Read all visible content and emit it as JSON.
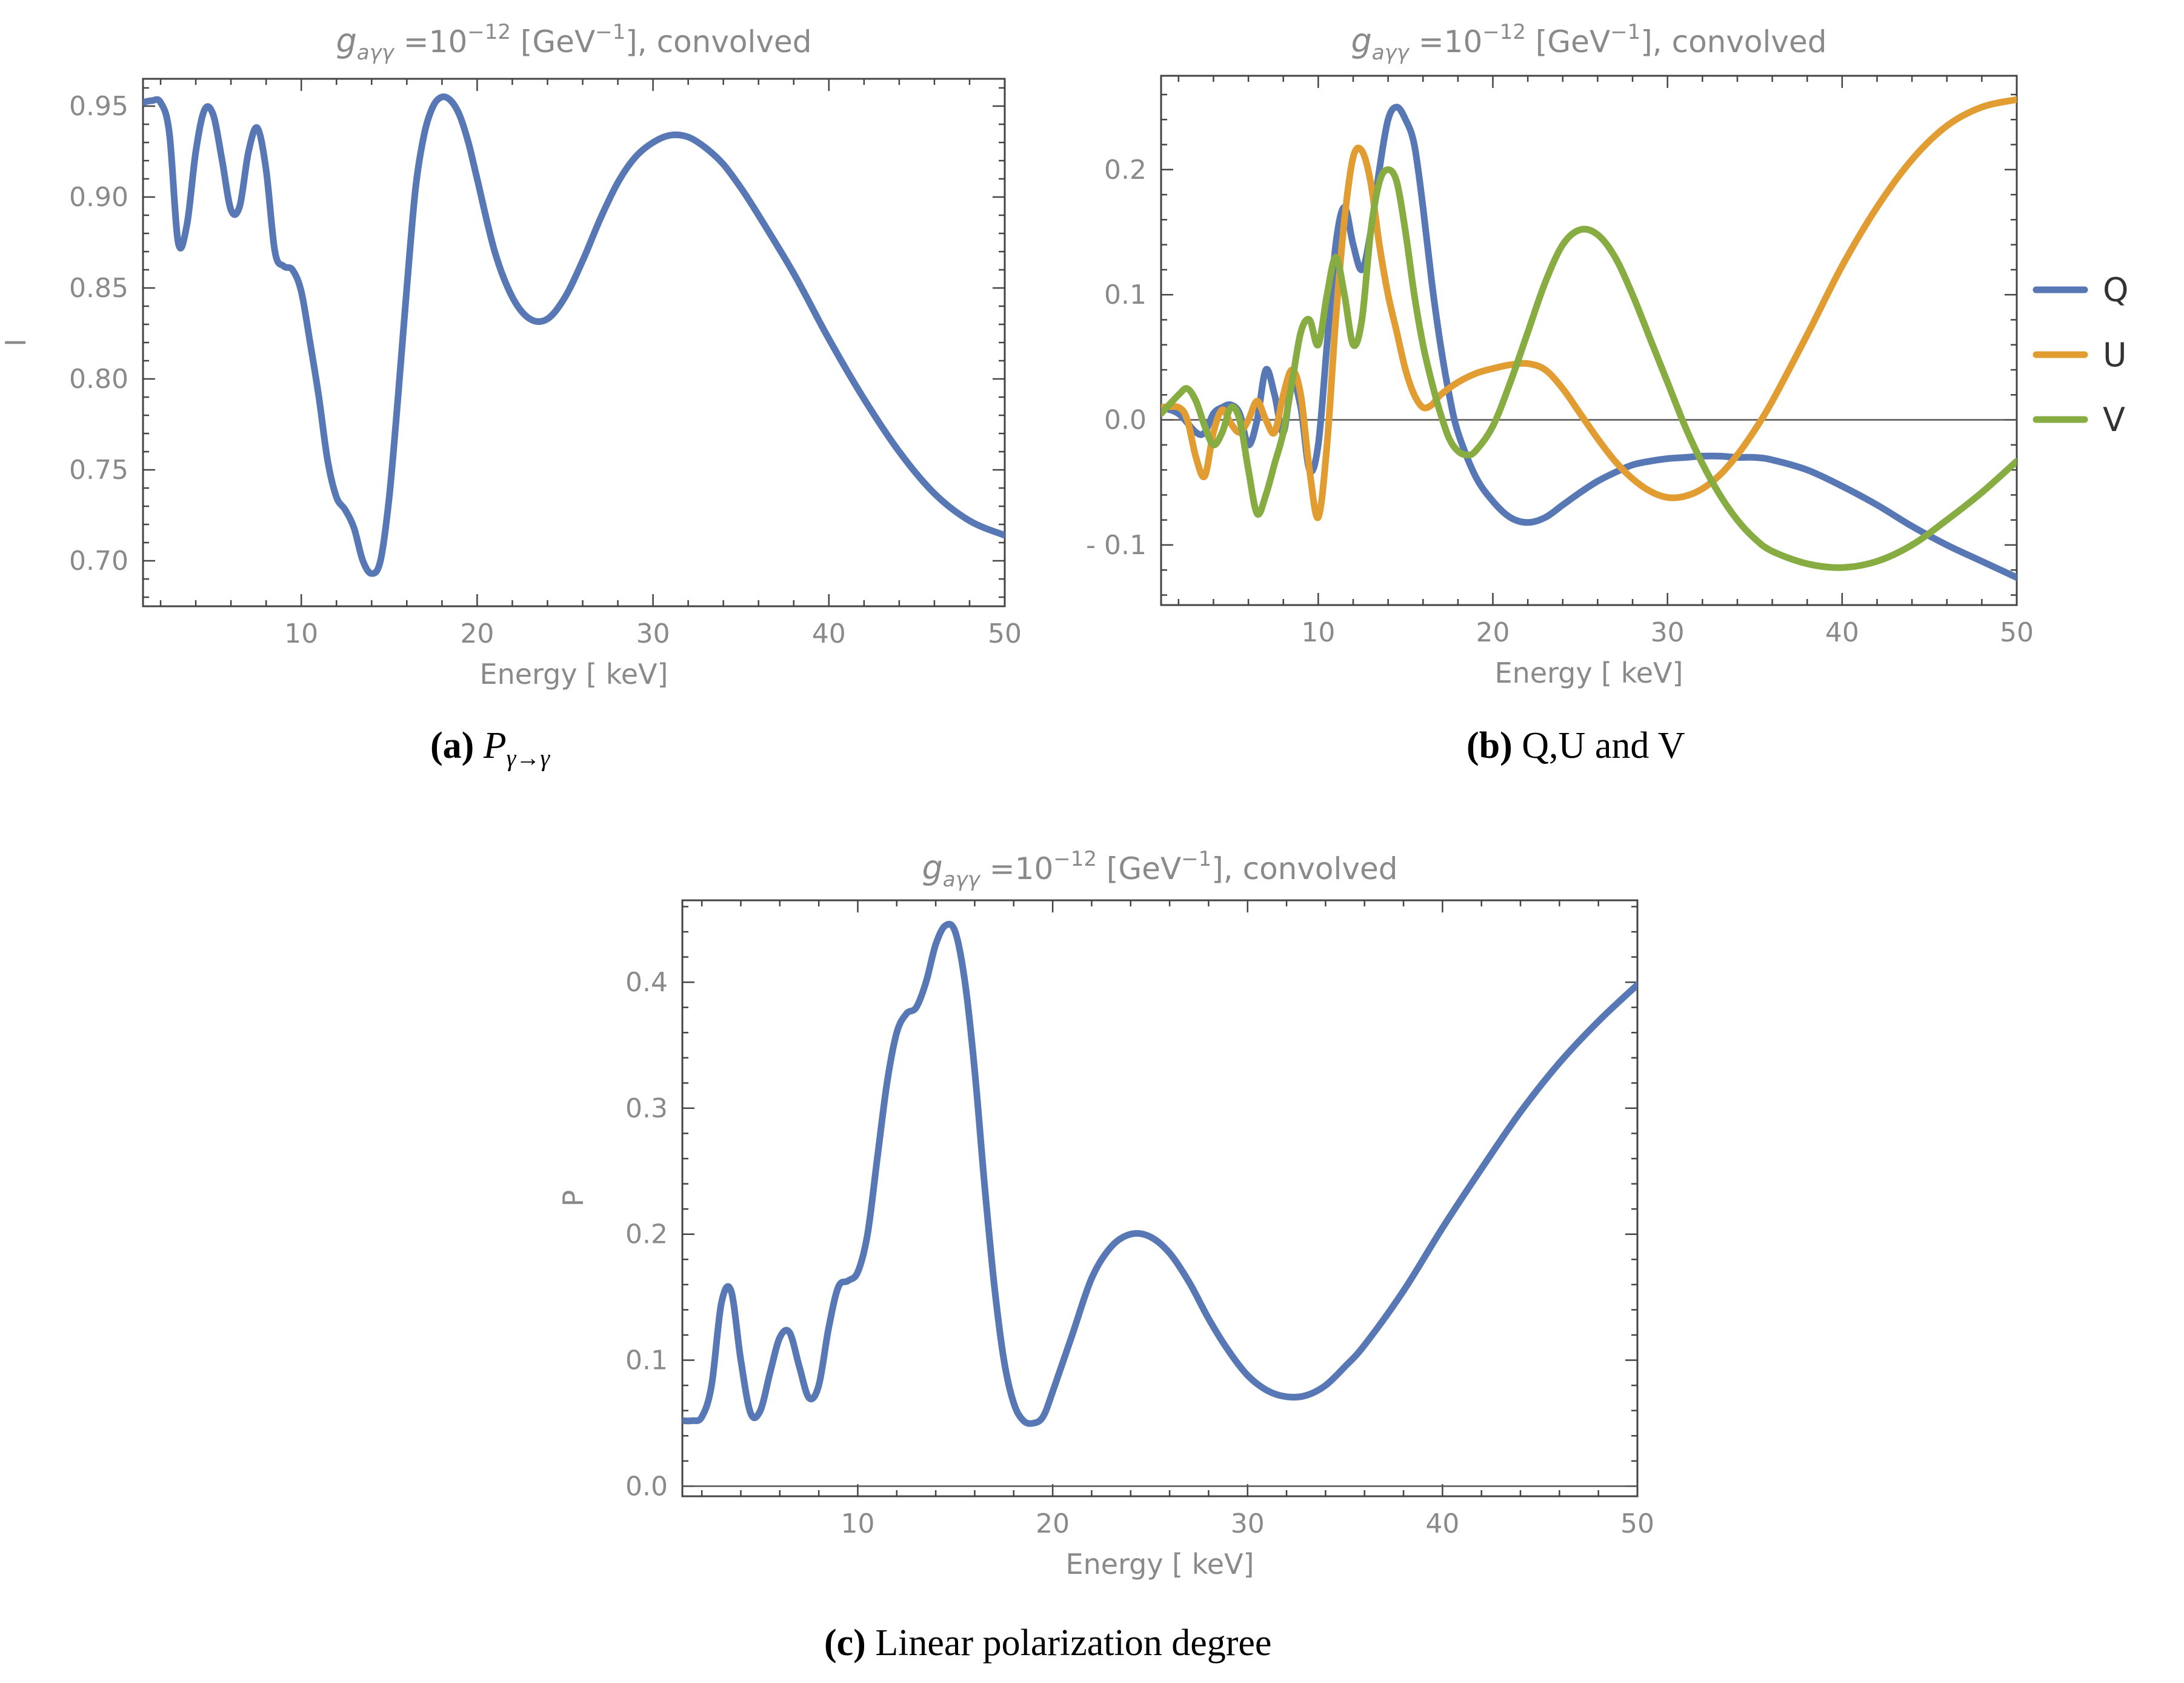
{
  "colors": {
    "Q": "#5778b4",
    "U": "#e19c32",
    "V": "#86ac42",
    "axis": "#555555",
    "text": "#8a8a8a"
  },
  "chart_data": [
    {
      "id": "a",
      "type": "line",
      "title_main": "g",
      "title_sub": "aγγ",
      "title_eq": " =10",
      "title_sup": "−12",
      "title_rest_a": "  [GeV",
      "title_rest_sup": "−1",
      "title_rest_b": "],  convolved",
      "xlabel": "Energy [ keV]",
      "ylabel": "I",
      "xlim": [
        1,
        50
      ],
      "ylim": [
        0.675,
        0.965
      ],
      "xticks": [
        10,
        20,
        30,
        40,
        50
      ],
      "yticks": [
        0.7,
        0.75,
        0.8,
        0.85,
        0.9,
        0.95
      ],
      "ytick_labels": [
        "0.70",
        "0.75",
        "0.80",
        "0.85",
        "0.90",
        "0.95"
      ],
      "caption_label": "(a)",
      "caption_text": "P",
      "caption_sub": "γ→γ",
      "series": [
        {
          "name": "I",
          "color": "#5778b4",
          "x": [
            1,
            1.5,
            2,
            2.5,
            3,
            3.5,
            4,
            4.5,
            5,
            5.5,
            6,
            6.5,
            7,
            7.5,
            8,
            8.5,
            9,
            9.5,
            10,
            10.5,
            11,
            11.5,
            12,
            12.5,
            13,
            13.5,
            14,
            14.5,
            15,
            15.5,
            16,
            16.5,
            17,
            17.5,
            18,
            18.5,
            19,
            19.5,
            20,
            21,
            22,
            23,
            24,
            25,
            26,
            27,
            28,
            29,
            30,
            31,
            32,
            33,
            34,
            35,
            36,
            38,
            40,
            42,
            44,
            46,
            48,
            50
          ],
          "values": [
            0.952,
            0.953,
            0.952,
            0.935,
            0.875,
            0.885,
            0.925,
            0.948,
            0.945,
            0.92,
            0.893,
            0.895,
            0.925,
            0.938,
            0.915,
            0.87,
            0.862,
            0.86,
            0.848,
            0.82,
            0.79,
            0.755,
            0.735,
            0.728,
            0.718,
            0.7,
            0.693,
            0.7,
            0.735,
            0.79,
            0.85,
            0.905,
            0.935,
            0.95,
            0.955,
            0.953,
            0.945,
            0.93,
            0.91,
            0.87,
            0.845,
            0.833,
            0.833,
            0.845,
            0.865,
            0.888,
            0.908,
            0.922,
            0.93,
            0.934,
            0.933,
            0.927,
            0.918,
            0.905,
            0.89,
            0.858,
            0.822,
            0.789,
            0.76,
            0.737,
            0.722,
            0.714
          ]
        }
      ]
    },
    {
      "id": "b",
      "type": "line",
      "title_main": "g",
      "title_sub": "aγγ",
      "title_eq": " =10",
      "title_sup": "−12",
      "title_rest_a": "  [GeV",
      "title_rest_sup": "−1",
      "title_rest_b": "],  convolved",
      "xlabel": "Energy [ keV]",
      "ylabel": "",
      "xlim": [
        1,
        50
      ],
      "ylim": [
        -0.148,
        0.275
      ],
      "xticks": [
        10,
        20,
        30,
        40,
        50
      ],
      "yticks": [
        -0.1,
        0.0,
        0.1,
        0.2
      ],
      "ytick_labels": [
        "- 0.1",
        "0.0",
        "0.1",
        "0.2"
      ],
      "caption_label": "(b)",
      "caption_text": "Q,U and V",
      "legend": [
        "Q",
        "U",
        "V"
      ],
      "series": [
        {
          "name": "Q",
          "color": "#5778b4",
          "x": [
            1,
            2,
            3,
            3.5,
            4,
            4.5,
            5,
            5.5,
            6,
            6.5,
            7,
            7.5,
            8,
            8.5,
            9,
            9.5,
            10,
            10.5,
            11,
            11.5,
            12,
            12.5,
            13,
            13.5,
            14,
            14.5,
            15,
            15.5,
            16,
            16.5,
            17,
            17.5,
            18,
            19,
            20,
            21,
            22,
            23,
            24,
            25,
            26,
            27,
            28,
            29,
            30,
            31,
            32,
            33,
            34,
            35,
            36,
            38,
            40,
            42,
            44,
            46,
            48,
            50
          ],
          "values": [
            0.01,
            0.005,
            -0.01,
            -0.01,
            0.005,
            0.01,
            0.012,
            0.005,
            -0.02,
            0.0,
            0.04,
            0.02,
            -0.01,
            0.03,
            0.01,
            -0.04,
            -0.02,
            0.06,
            0.14,
            0.17,
            0.14,
            0.12,
            0.15,
            0.2,
            0.24,
            0.25,
            0.24,
            0.22,
            0.17,
            0.11,
            0.06,
            0.02,
            -0.01,
            -0.045,
            -0.065,
            -0.078,
            -0.082,
            -0.078,
            -0.068,
            -0.058,
            -0.049,
            -0.042,
            -0.036,
            -0.033,
            -0.031,
            -0.03,
            -0.029,
            -0.029,
            -0.03,
            -0.03,
            -0.032,
            -0.04,
            -0.053,
            -0.068,
            -0.085,
            -0.1,
            -0.113,
            -0.126
          ]
        },
        {
          "name": "U",
          "color": "#e19c32",
          "x": [
            1,
            2,
            2.5,
            3,
            3.5,
            4,
            4.5,
            5,
            5.5,
            6,
            6.5,
            7,
            7.5,
            8,
            8.5,
            9,
            9.5,
            10,
            10.5,
            11,
            11.5,
            12,
            12.5,
            13,
            13.5,
            14,
            14.5,
            15,
            15.5,
            16,
            16.5,
            17,
            18,
            19,
            20,
            21,
            22,
            23,
            24,
            25,
            26,
            27,
            28,
            29,
            30,
            31,
            32,
            33,
            34,
            35,
            36,
            38,
            40,
            42,
            44,
            46,
            48,
            50
          ],
          "values": [
            0.01,
            0.01,
            0.0,
            -0.03,
            -0.045,
            -0.01,
            0.008,
            -0.003,
            -0.01,
            0.0,
            0.015,
            0.0,
            -0.01,
            0.02,
            0.04,
            0.02,
            -0.04,
            -0.078,
            -0.02,
            0.08,
            0.16,
            0.21,
            0.215,
            0.19,
            0.14,
            0.1,
            0.07,
            0.04,
            0.02,
            0.01,
            0.012,
            0.02,
            0.03,
            0.037,
            0.041,
            0.044,
            0.045,
            0.04,
            0.025,
            0.005,
            -0.015,
            -0.033,
            -0.047,
            -0.057,
            -0.062,
            -0.061,
            -0.055,
            -0.044,
            -0.028,
            -0.008,
            0.015,
            0.068,
            0.123,
            0.17,
            0.208,
            0.235,
            0.25,
            0.256
          ]
        },
        {
          "name": "V",
          "color": "#86ac42",
          "x": [
            1,
            2,
            2.5,
            3,
            3.5,
            4,
            4.5,
            5,
            5.5,
            6,
            6.5,
            7,
            7.5,
            8,
            8.5,
            9,
            9.5,
            10,
            10.5,
            11,
            11.5,
            12,
            12.5,
            13,
            13.5,
            14,
            14.5,
            15,
            15.5,
            16,
            16.5,
            17,
            17.5,
            18,
            18.5,
            19,
            20,
            21,
            22,
            23,
            24,
            25,
            26,
            27,
            28,
            29,
            30,
            31,
            32,
            33,
            34,
            35,
            36,
            38,
            40,
            42,
            44,
            46,
            48,
            50
          ],
          "values": [
            0.005,
            0.02,
            0.025,
            0.015,
            -0.005,
            -0.02,
            -0.01,
            0.01,
            0.0,
            -0.04,
            -0.075,
            -0.06,
            -0.035,
            -0.01,
            0.03,
            0.07,
            0.08,
            0.06,
            0.1,
            0.13,
            0.1,
            0.06,
            0.08,
            0.15,
            0.19,
            0.2,
            0.19,
            0.15,
            0.1,
            0.06,
            0.03,
            0.005,
            -0.015,
            -0.025,
            -0.028,
            -0.025,
            -0.005,
            0.03,
            0.07,
            0.11,
            0.14,
            0.152,
            0.148,
            0.13,
            0.1,
            0.065,
            0.03,
            -0.005,
            -0.035,
            -0.06,
            -0.08,
            -0.095,
            -0.105,
            -0.115,
            -0.118,
            -0.113,
            -0.1,
            -0.08,
            -0.058,
            -0.033
          ]
        }
      ]
    },
    {
      "id": "c",
      "type": "line",
      "title_main": "g",
      "title_sub": "aγγ",
      "title_eq": " =10",
      "title_sup": "−12",
      "title_rest_a": "  [GeV",
      "title_rest_sup": "−1",
      "title_rest_b": "],  convolved",
      "xlabel": "Energy [ keV]",
      "ylabel": "P",
      "xlim": [
        1,
        50
      ],
      "ylim": [
        -0.008,
        0.465
      ],
      "xticks": [
        10,
        20,
        30,
        40,
        50
      ],
      "yticks": [
        0.0,
        0.1,
        0.2,
        0.3,
        0.4
      ],
      "ytick_labels": [
        "0.0",
        "0.1",
        "0.2",
        "0.3",
        "0.4"
      ],
      "caption_label": "(c)",
      "caption_text": "Linear polarization degree",
      "series": [
        {
          "name": "P",
          "color": "#5778b4",
          "x": [
            1,
            1.5,
            2,
            2.5,
            3,
            3.5,
            4,
            4.5,
            5,
            5.5,
            6,
            6.5,
            7,
            7.5,
            8,
            8.5,
            9,
            9.5,
            10,
            10.5,
            11,
            11.5,
            12,
            12.5,
            13,
            13.5,
            14,
            14.5,
            15,
            15.5,
            16,
            16.5,
            17,
            17.5,
            18,
            18.5,
            19,
            19.5,
            20,
            21,
            22,
            23,
            24,
            25,
            26,
            27,
            28,
            29,
            30,
            31,
            32,
            33,
            34,
            35,
            36,
            38,
            40,
            42,
            44,
            46,
            48,
            50
          ],
          "values": [
            0.052,
            0.052,
            0.055,
            0.08,
            0.145,
            0.155,
            0.1,
            0.058,
            0.06,
            0.09,
            0.118,
            0.122,
            0.095,
            0.07,
            0.08,
            0.125,
            0.158,
            0.163,
            0.17,
            0.2,
            0.26,
            0.32,
            0.36,
            0.375,
            0.38,
            0.4,
            0.43,
            0.445,
            0.44,
            0.4,
            0.33,
            0.24,
            0.16,
            0.1,
            0.066,
            0.052,
            0.05,
            0.055,
            0.075,
            0.12,
            0.165,
            0.19,
            0.2,
            0.198,
            0.185,
            0.162,
            0.133,
            0.108,
            0.088,
            0.076,
            0.071,
            0.072,
            0.08,
            0.095,
            0.112,
            0.155,
            0.205,
            0.252,
            0.297,
            0.336,
            0.369,
            0.398
          ]
        }
      ]
    }
  ]
}
